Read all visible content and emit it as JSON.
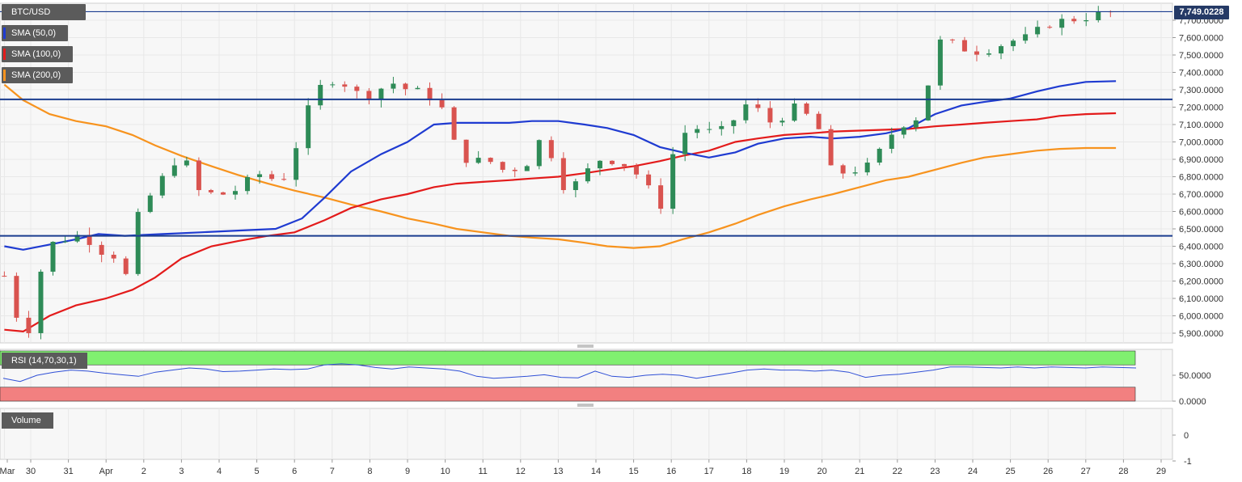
{
  "instrument": "BTC/USD",
  "last_price_tag": "7,749.0228",
  "legend": [
    {
      "label": "SMA (50,0)",
      "color": "#1f3bd1"
    },
    {
      "label": "SMA (100,0)",
      "color": "#e31b1b"
    },
    {
      "label": "SMA (200,0)",
      "color": "#f7931e"
    }
  ],
  "colors": {
    "bull": "#2e8b57",
    "bear": "#d9534f",
    "hline": "#1b3d8f",
    "grid": "#e8e8e8",
    "panel_bg": "#f7f7f7"
  },
  "rsi_label": "RSI (14,70,30,1)",
  "volume_label": "Volume",
  "chart_data": [
    {
      "type": "candlestick",
      "title": "BTC/USD",
      "xlabel": "",
      "ylabel": "",
      "ylim": [
        5860000,
        7810000
      ],
      "y_ticks": [
        {
          "value": 5900000,
          "label": "5,900.0000"
        },
        {
          "value": 6000000,
          "label": "6,000.0000"
        },
        {
          "value": 6100000,
          "label": "6,100.0000"
        },
        {
          "value": 6200000,
          "label": "6,200.0000"
        },
        {
          "value": 6300000,
          "label": "6,300.0000"
        },
        {
          "value": 6400000,
          "label": "6,400.0000"
        },
        {
          "value": 6500000,
          "label": "6,500.0000"
        },
        {
          "value": 6600000,
          "label": "6,600.0000"
        },
        {
          "value": 6700000,
          "label": "6,700.0000"
        },
        {
          "value": 6800000,
          "label": "6,800.0000"
        },
        {
          "value": 6900000,
          "label": "6,900.0000"
        },
        {
          "value": 7000000,
          "label": "7,000.0000"
        },
        {
          "value": 7100000,
          "label": "7,100.0000"
        },
        {
          "value": 7200000,
          "label": "7,200.0000"
        },
        {
          "value": 7300000,
          "label": "7,300.0000"
        },
        {
          "value": 7400000,
          "label": "7,400.0000"
        },
        {
          "value": 7500000,
          "label": "7,500.0000"
        },
        {
          "value": 7600000,
          "label": "7,600.0000"
        },
        {
          "value": 7700000,
          "label": "7,700.0000"
        }
      ],
      "x_range": [
        29.3,
        29.6
      ],
      "x_ticks": [
        {
          "value": 29.3,
          "label": "Mar"
        },
        {
          "value": 30,
          "label": "30"
        },
        {
          "value": 31,
          "label": "31"
        },
        {
          "value": 32,
          "label": "Apr"
        },
        {
          "value": 33,
          "label": "2"
        },
        {
          "value": 34,
          "label": "3"
        },
        {
          "value": 35,
          "label": "4"
        },
        {
          "value": 36,
          "label": "5"
        },
        {
          "value": 37,
          "label": "6"
        },
        {
          "value": 38,
          "label": "7"
        },
        {
          "value": 39,
          "label": "8"
        },
        {
          "value": 40,
          "label": "9"
        },
        {
          "value": 41,
          "label": "10"
        },
        {
          "value": 42,
          "label": "11"
        },
        {
          "value": 43,
          "label": "12"
        },
        {
          "value": 44,
          "label": "13"
        },
        {
          "value": 45,
          "label": "14"
        },
        {
          "value": 46,
          "label": "15"
        },
        {
          "value": 47,
          "label": "16"
        },
        {
          "value": 48,
          "label": "17"
        },
        {
          "value": 49,
          "label": "18"
        },
        {
          "value": 50,
          "label": "19"
        },
        {
          "value": 51,
          "label": "20"
        },
        {
          "value": 52,
          "label": "21"
        },
        {
          "value": 53,
          "label": "22"
        },
        {
          "value": 54,
          "label": "23"
        },
        {
          "value": 55,
          "label": "24"
        },
        {
          "value": 56,
          "label": "25"
        },
        {
          "value": 57,
          "label": "26"
        },
        {
          "value": 58,
          "label": "27"
        },
        {
          "value": 59,
          "label": "28"
        },
        {
          "value": 60,
          "label": "29"
        }
      ],
      "horizontal_lines": [
        7749.0228,
        7245,
        6460
      ],
      "candle_anchors": [
        [
          29.3,
          6230
        ],
        [
          29.7,
          5950
        ],
        [
          30.0,
          5920
        ],
        [
          30.3,
          6300
        ],
        [
          30.6,
          6420
        ],
        [
          31.0,
          6450
        ],
        [
          31.4,
          6470
        ],
        [
          31.8,
          6380
        ],
        [
          32.2,
          6350
        ],
        [
          32.5,
          6200
        ],
        [
          32.8,
          6550
        ],
        [
          33.2,
          6700
        ],
        [
          33.6,
          6820
        ],
        [
          34.0,
          6950
        ],
        [
          34.4,
          6720
        ],
        [
          34.8,
          6700
        ],
        [
          35.2,
          6700
        ],
        [
          35.6,
          6740
        ],
        [
          36.0,
          6820
        ],
        [
          36.4,
          6790
        ],
        [
          36.8,
          6800
        ],
        [
          37.0,
          6950
        ],
        [
          37.3,
          7150
        ],
        [
          37.6,
          7300
        ],
        [
          38.0,
          7360
        ],
        [
          38.4,
          7330
        ],
        [
          38.8,
          7250
        ],
        [
          39.2,
          7300
        ],
        [
          39.6,
          7340
        ],
        [
          40.0,
          7300
        ],
        [
          40.4,
          7280
        ],
        [
          40.8,
          7240
        ],
        [
          41.0,
          7150
        ],
        [
          41.3,
          6950
        ],
        [
          41.7,
          6880
        ],
        [
          42.1,
          6900
        ],
        [
          42.6,
          6830
        ],
        [
          43.0,
          6860
        ],
        [
          43.3,
          6900
        ],
        [
          43.6,
          7060
        ],
        [
          43.9,
          6880
        ],
        [
          44.2,
          6720
        ],
        [
          44.6,
          6780
        ],
        [
          45.0,
          6900
        ],
        [
          45.4,
          6900
        ],
        [
          45.9,
          6860
        ],
        [
          46.3,
          6760
        ],
        [
          46.7,
          6620
        ],
        [
          47.0,
          6910
        ],
        [
          47.3,
          7050
        ],
        [
          47.7,
          7080
        ],
        [
          48.1,
          7050
        ],
        [
          48.5,
          7070
        ],
        [
          48.9,
          7220
        ],
        [
          49.3,
          7180
        ],
        [
          49.7,
          7100
        ],
        [
          50.2,
          7200
        ],
        [
          50.6,
          7150
        ],
        [
          51.0,
          7050
        ],
        [
          51.3,
          6780
        ],
        [
          51.7,
          6850
        ],
        [
          52.1,
          6830
        ],
        [
          52.6,
          6960
        ],
        [
          53.0,
          7100
        ],
        [
          53.4,
          7120
        ],
        [
          53.7,
          7180
        ],
        [
          54.0,
          7580
        ],
        [
          54.5,
          7560
        ],
        [
          55.0,
          7520
        ],
        [
          55.5,
          7540
        ],
        [
          56.0,
          7580
        ],
        [
          56.5,
          7600
        ],
        [
          57.0,
          7680
        ],
        [
          57.5,
          7700
        ],
        [
          58.0,
          7720
        ],
        [
          58.5,
          7740
        ],
        [
          58.8,
          7749
        ]
      ],
      "sma50": [
        [
          29.3,
          6400
        ],
        [
          29.8,
          6380
        ],
        [
          30.5,
          6410
        ],
        [
          31.2,
          6440
        ],
        [
          31.8,
          6470
        ],
        [
          32.5,
          6460
        ],
        [
          33.5,
          6470
        ],
        [
          34.5,
          6480
        ],
        [
          35.5,
          6490
        ],
        [
          36.5,
          6500
        ],
        [
          37.2,
          6560
        ],
        [
          37.8,
          6680
        ],
        [
          38.5,
          6830
        ],
        [
          39.3,
          6930
        ],
        [
          40.0,
          7000
        ],
        [
          40.7,
          7100
        ],
        [
          41.3,
          7110
        ],
        [
          42.0,
          7110
        ],
        [
          42.7,
          7110
        ],
        [
          43.3,
          7120
        ],
        [
          44.0,
          7120
        ],
        [
          44.7,
          7100
        ],
        [
          45.3,
          7080
        ],
        [
          46.0,
          7040
        ],
        [
          46.7,
          6970
        ],
        [
          47.3,
          6940
        ],
        [
          48.0,
          6910
        ],
        [
          48.7,
          6940
        ],
        [
          49.3,
          6990
        ],
        [
          50.0,
          7020
        ],
        [
          50.7,
          7030
        ],
        [
          51.3,
          7020
        ],
        [
          52.0,
          7030
        ],
        [
          52.7,
          7050
        ],
        [
          53.3,
          7080
        ],
        [
          54.0,
          7160
        ],
        [
          54.7,
          7210
        ],
        [
          55.3,
          7230
        ],
        [
          56.0,
          7250
        ],
        [
          56.7,
          7290
        ],
        [
          57.3,
          7320
        ],
        [
          58.0,
          7345
        ],
        [
          58.8,
          7350
        ]
      ],
      "sma100": [
        [
          29.3,
          5920
        ],
        [
          29.8,
          5910
        ],
        [
          30.5,
          6000
        ],
        [
          31.2,
          6060
        ],
        [
          32.0,
          6100
        ],
        [
          32.7,
          6150
        ],
        [
          33.3,
          6220
        ],
        [
          34.0,
          6330
        ],
        [
          34.8,
          6400
        ],
        [
          35.5,
          6430
        ],
        [
          36.3,
          6460
        ],
        [
          37.0,
          6480
        ],
        [
          37.8,
          6550
        ],
        [
          38.5,
          6620
        ],
        [
          39.3,
          6670
        ],
        [
          40.0,
          6700
        ],
        [
          40.7,
          6740
        ],
        [
          41.3,
          6760
        ],
        [
          42.0,
          6770
        ],
        [
          42.7,
          6780
        ],
        [
          43.3,
          6790
        ],
        [
          44.0,
          6800
        ],
        [
          44.7,
          6820
        ],
        [
          45.3,
          6840
        ],
        [
          46.0,
          6860
        ],
        [
          46.7,
          6890
        ],
        [
          47.3,
          6920
        ],
        [
          48.0,
          6950
        ],
        [
          48.7,
          7000
        ],
        [
          49.3,
          7020
        ],
        [
          50.0,
          7040
        ],
        [
          50.7,
          7050
        ],
        [
          51.3,
          7060
        ],
        [
          52.0,
          7065
        ],
        [
          52.7,
          7070
        ],
        [
          53.3,
          7075
        ],
        [
          54.0,
          7090
        ],
        [
          54.7,
          7100
        ],
        [
          55.3,
          7110
        ],
        [
          56.0,
          7120
        ],
        [
          56.7,
          7130
        ],
        [
          57.3,
          7150
        ],
        [
          58.0,
          7160
        ],
        [
          58.8,
          7165
        ]
      ],
      "sma200": [
        [
          29.3,
          7330
        ],
        [
          29.8,
          7240
        ],
        [
          30.5,
          7160
        ],
        [
          31.2,
          7120
        ],
        [
          32.0,
          7090
        ],
        [
          32.7,
          7040
        ],
        [
          33.3,
          6980
        ],
        [
          34.0,
          6920
        ],
        [
          34.8,
          6860
        ],
        [
          35.5,
          6810
        ],
        [
          36.3,
          6760
        ],
        [
          37.0,
          6720
        ],
        [
          37.8,
          6680
        ],
        [
          38.5,
          6640
        ],
        [
          39.3,
          6600
        ],
        [
          40.0,
          6560
        ],
        [
          40.7,
          6530
        ],
        [
          41.3,
          6500
        ],
        [
          42.0,
          6480
        ],
        [
          42.7,
          6460
        ],
        [
          43.3,
          6450
        ],
        [
          44.0,
          6440
        ],
        [
          44.7,
          6420
        ],
        [
          45.3,
          6400
        ],
        [
          46.0,
          6390
        ],
        [
          46.7,
          6400
        ],
        [
          47.3,
          6440
        ],
        [
          48.0,
          6480
        ],
        [
          48.7,
          6530
        ],
        [
          49.3,
          6580
        ],
        [
          50.0,
          6630
        ],
        [
          50.7,
          6670
        ],
        [
          51.3,
          6700
        ],
        [
          52.0,
          6740
        ],
        [
          52.7,
          6780
        ],
        [
          53.3,
          6800
        ],
        [
          54.0,
          6840
        ],
        [
          54.7,
          6880
        ],
        [
          55.3,
          6910
        ],
        [
          56.0,
          6930
        ],
        [
          56.7,
          6950
        ],
        [
          57.3,
          6960
        ],
        [
          58.0,
          6965
        ],
        [
          58.8,
          6965
        ]
      ]
    },
    {
      "type": "line",
      "title": "RSI (14,70,30,1)",
      "ylim": [
        0,
        100
      ],
      "y_ticks": [
        {
          "value": 50,
          "label": "50.0000"
        },
        {
          "value": 0,
          "label": "0.0000"
        }
      ],
      "overbought": 70,
      "oversold": 30,
      "values": [
        44,
        38,
        50,
        56,
        60,
        58,
        54,
        51,
        48,
        56,
        60,
        64,
        62,
        57,
        58,
        60,
        62,
        61,
        62,
        70,
        72,
        70,
        65,
        62,
        66,
        64,
        62,
        58,
        48,
        44,
        46,
        48,
        51,
        46,
        45,
        58,
        48,
        46,
        50,
        52,
        50,
        44,
        49,
        54,
        60,
        62,
        60,
        60,
        58,
        60,
        56,
        46,
        50,
        52,
        56,
        60,
        66,
        66,
        65,
        64,
        66,
        64,
        66,
        65,
        64,
        66,
        65,
        64
      ]
    },
    {
      "type": "bar",
      "title": "Volume",
      "y_ticks": [
        {
          "value": 0,
          "label": "0"
        },
        {
          "value": -1,
          "label": "-1"
        }
      ],
      "values": []
    }
  ]
}
